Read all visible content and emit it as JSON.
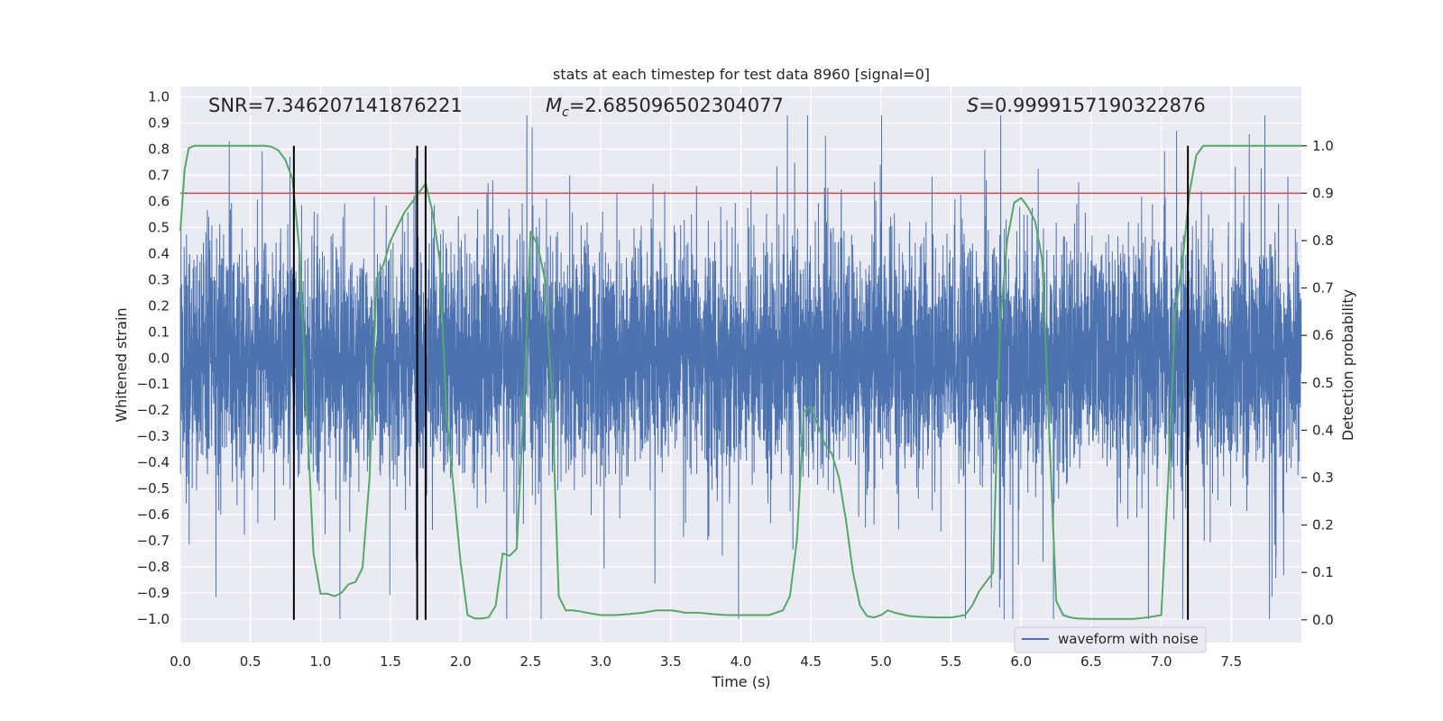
{
  "chart_data": {
    "type": "line",
    "title": "stats at each timestep for test data 8960 [signal=0]",
    "xlabel": "Time (s)",
    "ylabel": "Whitened strain",
    "y2label": "Detection probability",
    "xlim": [
      0,
      8
    ],
    "ylim": [
      -1.09,
      1.04
    ],
    "y2lim": [
      -0.048,
      1.125
    ],
    "xticks": [
      0.0,
      0.5,
      1.0,
      1.5,
      2.0,
      2.5,
      3.0,
      3.5,
      4.0,
      4.5,
      5.0,
      5.5,
      6.0,
      6.5,
      7.0,
      7.5
    ],
    "xtick_labels": [
      "0.0",
      "0.5",
      "1.0",
      "1.5",
      "2.0",
      "2.5",
      "3.0",
      "3.5",
      "4.0",
      "4.5",
      "5.0",
      "5.5",
      "6.0",
      "6.5",
      "7.0",
      "7.5"
    ],
    "yticks": [
      1.0,
      0.9,
      0.8,
      0.7,
      0.6,
      0.5,
      0.4,
      0.3,
      0.2,
      0.1,
      0.0,
      -0.1,
      -0.2,
      -0.3,
      -0.4,
      -0.5,
      -0.6,
      -0.7,
      -0.8,
      -0.9,
      -1.0
    ],
    "ytick_labels": [
      "1.0",
      "0.9",
      "0.8",
      "0.7",
      "0.6",
      "0.5",
      "0.4",
      "0.3",
      "0.2",
      "0.1",
      "0.0",
      "−0.1",
      "−0.2",
      "−0.3",
      "−0.4",
      "−0.5",
      "−0.6",
      "−0.7",
      "−0.8",
      "−0.9",
      "−1.0"
    ],
    "y2ticks": [
      1.0,
      0.9,
      0.8,
      0.7,
      0.6,
      0.5,
      0.4,
      0.3,
      0.2,
      0.1,
      0.0
    ],
    "y2tick_labels": [
      "1.0",
      "0.9",
      "0.8",
      "0.7",
      "0.6",
      "0.5",
      "0.4",
      "0.3",
      "0.2",
      "0.1",
      "0.0"
    ],
    "grid": true,
    "legend": {
      "placement": "lower-right",
      "entries": [
        "waveform with noise"
      ]
    },
    "annotations": {
      "snr": "SNR=7.346207141876221",
      "mc_symbol": "M",
      "mc_sub": "c",
      "mc_value": "=2.685096502304077",
      "s_symbol": "S",
      "s_value": "=0.9999157190322876"
    },
    "threshold": {
      "y2": 0.9,
      "color": "#c44e52"
    },
    "vertical_markers_x": [
      0.81,
      1.69,
      1.75,
      7.19
    ],
    "vertical_marker_color": "#000000",
    "series": [
      {
        "name": "waveform with noise",
        "color": "#4c72b0",
        "axis": "left",
        "sample_rate_hz": 2048,
        "core_amplitude": 0.35,
        "envelope_examples": {
          "max": 0.93,
          "min": -1.0
        }
      },
      {
        "axis": "right",
        "color": "#55a868",
        "x": [
          0.0,
          0.03,
          0.06,
          0.1,
          0.15,
          0.2,
          0.3,
          0.4,
          0.5,
          0.6,
          0.65,
          0.7,
          0.75,
          0.8,
          0.85,
          0.9,
          0.95,
          1.0,
          1.05,
          1.1,
          1.15,
          1.2,
          1.25,
          1.3,
          1.35,
          1.4,
          1.45,
          1.5,
          1.55,
          1.6,
          1.65,
          1.7,
          1.75,
          1.8,
          1.85,
          1.9,
          2.0,
          2.05,
          2.1,
          2.15,
          2.2,
          2.25,
          2.3,
          2.35,
          2.4,
          2.45,
          2.5,
          2.55,
          2.6,
          2.65,
          2.7,
          2.75,
          2.8,
          2.85,
          2.9,
          3.0,
          3.1,
          3.2,
          3.3,
          3.4,
          3.5,
          3.55,
          3.6,
          3.7,
          3.8,
          3.9,
          4.0,
          4.1,
          4.2,
          4.3,
          4.35,
          4.4,
          4.45,
          4.5,
          4.55,
          4.6,
          4.65,
          4.7,
          4.75,
          4.8,
          4.85,
          4.9,
          4.95,
          5.0,
          5.05,
          5.1,
          5.2,
          5.3,
          5.4,
          5.5,
          5.6,
          5.65,
          5.7,
          5.75,
          5.8,
          5.85,
          5.9,
          5.95,
          6.0,
          6.05,
          6.1,
          6.15,
          6.2,
          6.25,
          6.3,
          6.35,
          6.4,
          6.5,
          6.6,
          6.7,
          6.8,
          6.9,
          7.0,
          7.05,
          7.1,
          7.15,
          7.2,
          7.25,
          7.3,
          7.35,
          7.4,
          7.5,
          7.6,
          7.7,
          7.8,
          7.9,
          8.0
        ],
        "values": [
          0.82,
          0.95,
          0.995,
          1.0,
          1.0,
          1.0,
          1.0,
          1.0,
          1.0,
          1.0,
          0.998,
          0.99,
          0.97,
          0.93,
          0.78,
          0.45,
          0.14,
          0.055,
          0.055,
          0.05,
          0.057,
          0.075,
          0.08,
          0.11,
          0.3,
          0.72,
          0.75,
          0.8,
          0.83,
          0.86,
          0.88,
          0.9,
          0.92,
          0.86,
          0.76,
          0.43,
          0.12,
          0.01,
          0.003,
          0.003,
          0.005,
          0.03,
          0.14,
          0.135,
          0.15,
          0.45,
          0.82,
          0.79,
          0.72,
          0.49,
          0.05,
          0.02,
          0.02,
          0.018,
          0.015,
          0.01,
          0.01,
          0.012,
          0.015,
          0.02,
          0.02,
          0.018,
          0.015,
          0.015,
          0.012,
          0.01,
          0.01,
          0.01,
          0.01,
          0.02,
          0.05,
          0.17,
          0.44,
          0.45,
          0.41,
          0.37,
          0.35,
          0.3,
          0.21,
          0.1,
          0.03,
          0.008,
          0.005,
          0.01,
          0.02,
          0.015,
          0.008,
          0.006,
          0.005,
          0.005,
          0.01,
          0.03,
          0.06,
          0.08,
          0.1,
          0.62,
          0.8,
          0.88,
          0.89,
          0.87,
          0.84,
          0.76,
          0.4,
          0.04,
          0.01,
          0.005,
          0.003,
          0.002,
          0.002,
          0.002,
          0.002,
          0.005,
          0.01,
          0.3,
          0.65,
          0.75,
          0.9,
          0.98,
          1.0,
          1.0,
          1.0,
          1.0,
          1.0,
          1.0,
          1.0,
          1.0,
          1.0
        ]
      }
    ]
  }
}
